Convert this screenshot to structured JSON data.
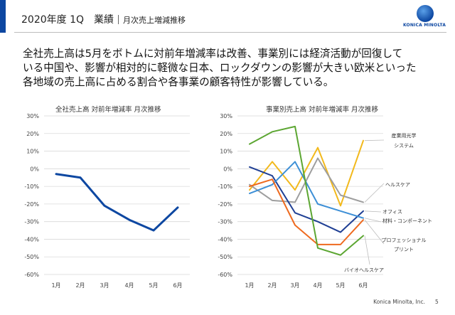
{
  "header": {
    "title": "2020年度 1Q　業績",
    "subtitle": "月次売上増減推移",
    "accent_color": "#0d47a1"
  },
  "logo": {
    "text": "KONICA MINOLTA",
    "icon": "konica-minolta-globe-icon"
  },
  "summary": "全社売上高は5月をボトムに対前年増減率は改善、事業別には経済活動が回復して\nいる中国や、影響が相対的に軽微な日本、ロックダウンの影響が大きい欧米といった\n各地域の売上高に占める割合や各事業の顧客特性が影響している。",
  "footer": {
    "company": "Konica Minolta, Inc.",
    "page": "5"
  },
  "chart_data": [
    {
      "type": "line",
      "title": "全社売上高 対前年増減率 月次推移",
      "categories": [
        "1月",
        "2月",
        "3月",
        "4月",
        "5月",
        "6月"
      ],
      "ylim": [
        -60,
        30
      ],
      "yticks": [
        "30%",
        "20%",
        "10%",
        "0%",
        "-10%",
        "-20%",
        "-30%",
        "-40%",
        "-50%",
        "-60%"
      ],
      "grid": true,
      "series": [
        {
          "values": [
            -3,
            -5,
            -21,
            -29,
            -35,
            -22
          ],
          "color": "#0d47a1"
        }
      ]
    },
    {
      "type": "line",
      "title": "事業別売上高 対前年増減率 月次推移",
      "categories": [
        "1月",
        "2月",
        "3月",
        "4月",
        "5月",
        "6月"
      ],
      "ylim": [
        -60,
        30
      ],
      "yticks": [
        "30%",
        "20%",
        "10%",
        "0%",
        "-10%",
        "-20%",
        "-30%",
        "-40%",
        "-50%",
        "-60%"
      ],
      "grid": true,
      "series": [
        {
          "name": "産業用光学\nシステム",
          "values": [
            -12,
            4,
            -12,
            12,
            -21,
            16
          ],
          "color": "#f2b91c"
        },
        {
          "name": "ヘルスケア",
          "values": [
            -9,
            -18,
            -19,
            6,
            -15,
            -19
          ],
          "color": "#9e9e9e"
        },
        {
          "name": "オフィス",
          "values": [
            1,
            -4,
            -25,
            -30,
            -36,
            -24
          ],
          "color": "#1f3f94"
        },
        {
          "name": "材料・コンポーネント",
          "values": [
            -14,
            -9,
            4,
            -20,
            -24,
            -28
          ],
          "color": "#3d8fd6"
        },
        {
          "name": "プロフェッショナル\nプリント",
          "values": [
            -10,
            -6,
            -32,
            -43,
            -43,
            -29
          ],
          "color": "#ee6a1f"
        },
        {
          "name": "バイオヘルスケア",
          "values": [
            14,
            21,
            24,
            -45,
            -49,
            -38
          ],
          "color": "#5ca632"
        }
      ]
    }
  ]
}
